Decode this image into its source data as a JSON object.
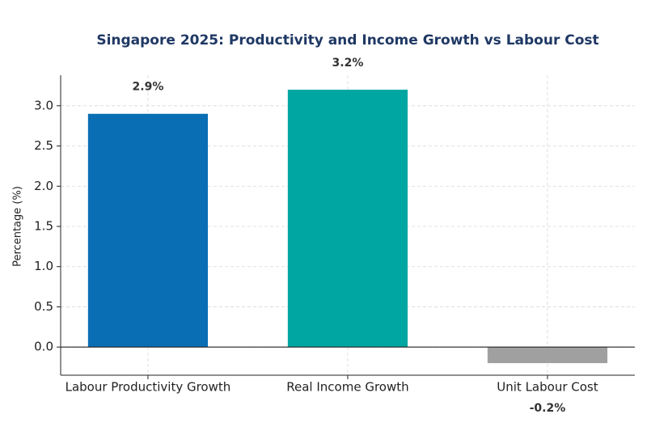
{
  "chart_data": {
    "type": "bar",
    "title": "Singapore 2025: Productivity and Income Growth vs Labour Cost",
    "y_label": "Percentage (%)",
    "categories": [
      "Labour Productivity Growth",
      "Real Income Growth",
      "Unit Labour Cost"
    ],
    "values": [
      2.9,
      3.2,
      -0.2
    ],
    "value_labels": [
      "2.9%",
      "3.2%",
      "-0.2%"
    ],
    "colors": [
      "#0a6eb4",
      "#00a6a2",
      "#a0a0a0"
    ],
    "ylim": [
      -0.35,
      3.38
    ],
    "yticks": [
      {
        "value": 0,
        "label": "0.0"
      },
      {
        "value": 0.5,
        "label": "0.5"
      },
      {
        "value": 1,
        "label": "1.0"
      },
      {
        "value": 1.5,
        "label": "1.5"
      },
      {
        "value": 2,
        "label": "2.0"
      },
      {
        "value": 2.5,
        "label": "2.5"
      },
      {
        "value": 3,
        "label": "3.0"
      }
    ],
    "grid": true
  }
}
